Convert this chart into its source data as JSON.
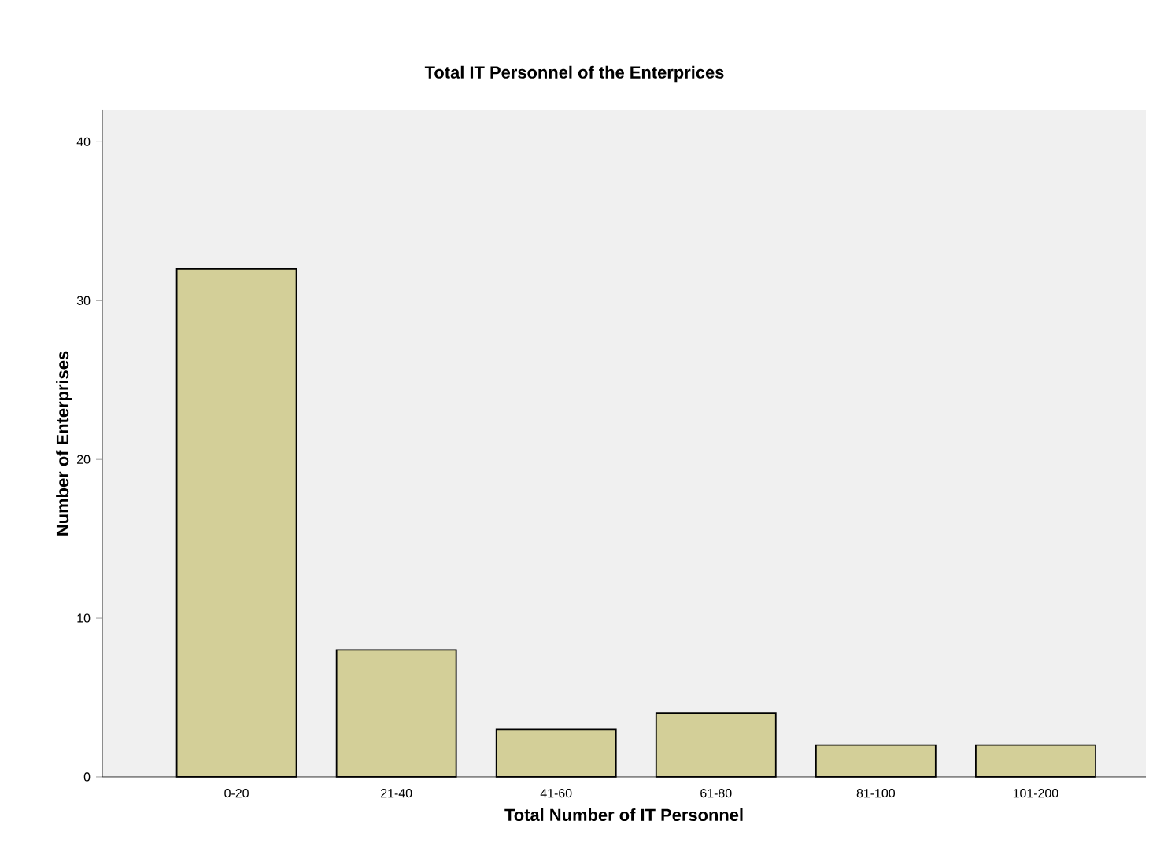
{
  "chart_data": {
    "type": "bar",
    "title": "Total IT Personnel of the Enterprices",
    "xlabel": "Total Number of IT Personnel",
    "ylabel": "Number of Enterprises",
    "categories": [
      "0-20",
      "21-40",
      "41-60",
      "61-80",
      "81-100",
      "101-200"
    ],
    "values": [
      32,
      8,
      3,
      4,
      2,
      2
    ],
    "color": "#d3cf98",
    "ylim": [
      0,
      42
    ],
    "yticks": [
      0,
      10,
      20,
      30,
      40
    ],
    "grid": false
  }
}
